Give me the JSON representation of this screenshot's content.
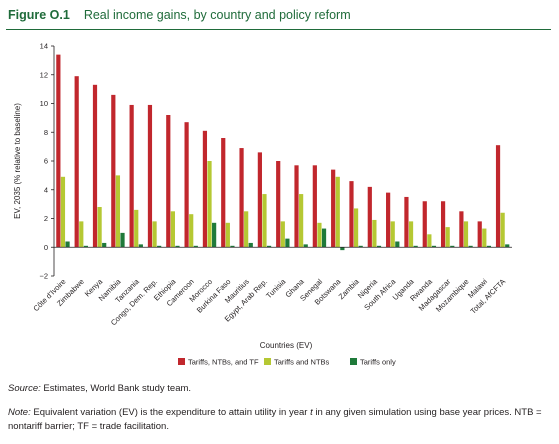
{
  "figure": {
    "label": "Figure O.1",
    "title": "Real income gains, by country and policy reform"
  },
  "source": {
    "lead": "Source:",
    "text": " Estimates, World Bank study team."
  },
  "note": {
    "lead": "Note:",
    "text_a": " Equivalent variation (EV) is the expenditure to attain utility in year ",
    "t": "t",
    "text_b": " in any given simulation using base year prices. NTB = nontariff barrier; TF = trade facilitation."
  },
  "chart_data": {
    "type": "bar",
    "title": "Real income gains, by country and policy reform",
    "ylabel": "EV, 2035 (% relative to baseline)",
    "xlabel": "Countries (EV)",
    "ylim": [
      -2,
      14
    ],
    "yticks": [
      -2,
      0,
      2,
      4,
      6,
      8,
      10,
      12,
      14
    ],
    "grid": false,
    "legend_position": "bottom",
    "categories": [
      "Côte d’Ivoire",
      "Zimbabwe",
      "Kenya",
      "Namibia",
      "Tanzania",
      "Congo, Dem. Rep.",
      "Ethiopia",
      "Cameroon",
      "Morocco",
      "Burkina Faso",
      "Mauritius",
      "Egypt, Arab Rep.",
      "Tunisia",
      "Ghana",
      "Senegal",
      "Botswana",
      "Zambia",
      "Nigeria",
      "South Africa",
      "Uganda",
      "Rwanda",
      "Madagascar",
      "Mozambique",
      "Malawi",
      "Total, AfCFTA"
    ],
    "series": [
      {
        "name": "Tariffs, NTBs, and TF",
        "color": "#c1272d",
        "values": [
          13.4,
          11.9,
          11.3,
          10.6,
          9.9,
          9.9,
          9.2,
          8.7,
          8.1,
          7.6,
          6.9,
          6.6,
          6.0,
          5.7,
          5.7,
          5.4,
          4.6,
          4.2,
          3.8,
          3.5,
          3.2,
          3.2,
          2.5,
          1.8,
          7.1
        ]
      },
      {
        "name": "Tariffs and NTBs",
        "color": "#b5c833",
        "values": [
          4.9,
          1.8,
          2.8,
          5.0,
          2.6,
          1.8,
          2.5,
          2.3,
          6.0,
          1.7,
          2.5,
          3.7,
          1.8,
          3.7,
          1.7,
          4.9,
          2.7,
          1.9,
          1.8,
          1.8,
          0.9,
          1.4,
          1.8,
          1.3,
          2.4
        ]
      },
      {
        "name": "Tariffs only",
        "color": "#1f7a3a",
        "values": [
          0.4,
          0.1,
          0.3,
          1.0,
          0.2,
          0.1,
          0.1,
          0.1,
          1.7,
          0.1,
          0.3,
          0.1,
          0.6,
          0.2,
          1.3,
          -0.2,
          0.1,
          0.1,
          0.4,
          0.1,
          0.1,
          0.1,
          0.1,
          0.1,
          0.2
        ]
      }
    ]
  }
}
